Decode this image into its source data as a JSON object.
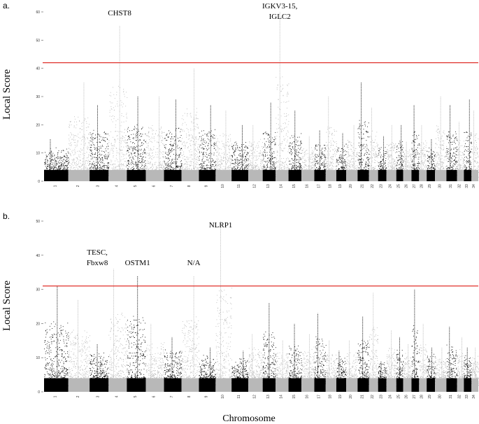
{
  "figure": {
    "panel_labels": [
      "a.",
      "b."
    ],
    "xlabel": "Chromosome"
  },
  "chart_data": [
    {
      "type": "scatter",
      "subtype": "manhattan",
      "panel": "a.",
      "ylabel": "Local Score",
      "ylim": [
        0,
        60
      ],
      "yticks": [
        0,
        10,
        20,
        30,
        40,
        50,
        60
      ],
      "threshold": 42,
      "threshold_color": "#e0302a",
      "point_colors": [
        "#000000",
        "#b8b8b8"
      ],
      "chromosomes": [
        {
          "label": "1",
          "peak": 15
        },
        {
          "label": "2",
          "peak": 35
        },
        {
          "label": "3",
          "peak": 27
        },
        {
          "label": "4",
          "peak": 55
        },
        {
          "label": "5",
          "peak": 30
        },
        {
          "label": "6",
          "peak": 30
        },
        {
          "label": "7",
          "peak": 29
        },
        {
          "label": "8",
          "peak": 40
        },
        {
          "label": "9",
          "peak": 27
        },
        {
          "label": "10",
          "peak": 25
        },
        {
          "label": "11",
          "peak": 20
        },
        {
          "label": "12",
          "peak": 20
        },
        {
          "label": "13",
          "peak": 28
        },
        {
          "label": "14",
          "peak": 62
        },
        {
          "label": "15",
          "peak": 25
        },
        {
          "label": "16",
          "peak": 16
        },
        {
          "label": "17",
          "peak": 18
        },
        {
          "label": "18",
          "peak": 30
        },
        {
          "label": "19",
          "peak": 17
        },
        {
          "label": "20",
          "peak": 20
        },
        {
          "label": "21",
          "peak": 35
        },
        {
          "label": "22",
          "peak": 26
        },
        {
          "label": "23",
          "peak": 16
        },
        {
          "label": "24",
          "peak": 20
        },
        {
          "label": "25",
          "peak": 20
        },
        {
          "label": "26",
          "peak": 14
        },
        {
          "label": "27",
          "peak": 27
        },
        {
          "label": "28",
          "peak": 20
        },
        {
          "label": "29",
          "peak": 15
        },
        {
          "label": "30",
          "peak": 30
        },
        {
          "label": "31",
          "peak": 27
        },
        {
          "label": "32",
          "peak": 21
        },
        {
          "label": "33",
          "peak": 29
        },
        {
          "label": "34",
          "peak": 25
        }
      ],
      "annotations": [
        {
          "text": "CHST8",
          "chromosome": "4"
        },
        {
          "text": "IGKV3-15,",
          "chromosome": "14"
        },
        {
          "text": "IGLC2",
          "chromosome": "14"
        }
      ]
    },
    {
      "type": "scatter",
      "subtype": "manhattan",
      "panel": "b.",
      "ylabel": "Local Score",
      "ylim": [
        0,
        50
      ],
      "yticks": [
        0,
        10,
        20,
        30,
        40,
        50
      ],
      "threshold": 31,
      "threshold_color": "#e0302a",
      "point_colors": [
        "#000000",
        "#b8b8b8"
      ],
      "chromosomes": [
        {
          "label": "1",
          "peak": 31
        },
        {
          "label": "2",
          "peak": 27
        },
        {
          "label": "3",
          "peak": 14
        },
        {
          "label": "4",
          "peak": 36
        },
        {
          "label": "5",
          "peak": 34
        },
        {
          "label": "6",
          "peak": 20
        },
        {
          "label": "7",
          "peak": 16
        },
        {
          "label": "8",
          "peak": 34
        },
        {
          "label": "9",
          "peak": 13
        },
        {
          "label": "10",
          "peak": 50
        },
        {
          "label": "11",
          "peak": 12
        },
        {
          "label": "12",
          "peak": 17
        },
        {
          "label": "13",
          "peak": 26
        },
        {
          "label": "14",
          "peak": 15
        },
        {
          "label": "15",
          "peak": 20
        },
        {
          "label": "16",
          "peak": 17
        },
        {
          "label": "17",
          "peak": 23
        },
        {
          "label": "18",
          "peak": 15
        },
        {
          "label": "19",
          "peak": 12
        },
        {
          "label": "20",
          "peak": 15
        },
        {
          "label": "21",
          "peak": 22
        },
        {
          "label": "22",
          "peak": 29
        },
        {
          "label": "23",
          "peak": 9
        },
        {
          "label": "24",
          "peak": 18
        },
        {
          "label": "25",
          "peak": 16
        },
        {
          "label": "26",
          "peak": 14
        },
        {
          "label": "27",
          "peak": 30
        },
        {
          "label": "28",
          "peak": 20
        },
        {
          "label": "29",
          "peak": 13
        },
        {
          "label": "30",
          "peak": 13
        },
        {
          "label": "31",
          "peak": 19
        },
        {
          "label": "32",
          "peak": 16
        },
        {
          "label": "33",
          "peak": 13
        },
        {
          "label": "34",
          "peak": 13
        }
      ],
      "annotations": [
        {
          "text": "TESC,",
          "chromosome": "3"
        },
        {
          "text": "Fbxw8",
          "chromosome": "3"
        },
        {
          "text": "OSTM1",
          "chromosome": "5"
        },
        {
          "text": "N/A",
          "chromosome": "8"
        },
        {
          "text": "NLRP1",
          "chromosome": "10"
        }
      ]
    }
  ]
}
